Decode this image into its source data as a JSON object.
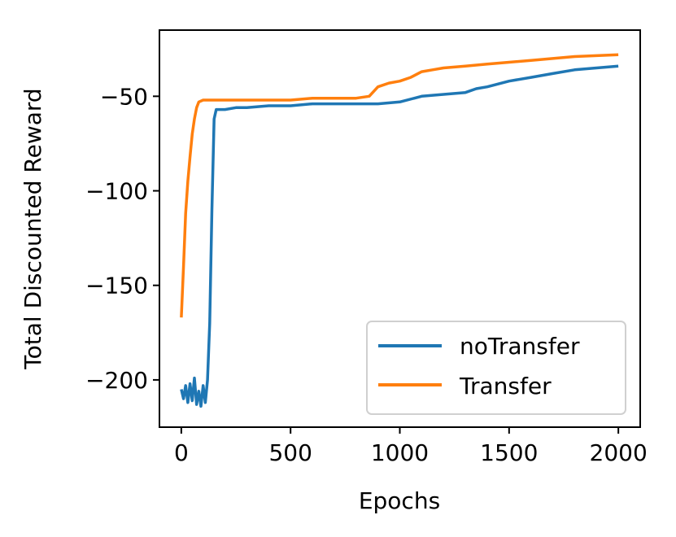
{
  "chart_data": {
    "type": "line",
    "title": "",
    "xlabel": "Epochs",
    "ylabel": "Total Discounted Reward",
    "xlim": [
      -100,
      2100
    ],
    "ylim": [
      -225,
      -15
    ],
    "xticks": [
      0,
      500,
      1000,
      1500,
      2000
    ],
    "xtick_labels": [
      "0",
      "500",
      "1000",
      "1500",
      "2000"
    ],
    "yticks": [
      -50,
      -100,
      -150,
      -200
    ],
    "ytick_labels": [
      "−50",
      "−100",
      "−150",
      "−200"
    ],
    "grid": false,
    "legend_position": "lower-right",
    "series": [
      {
        "name": "noTransfer",
        "color": "#1f77b4",
        "points": [
          [
            0,
            -205
          ],
          [
            10,
            -210
          ],
          [
            20,
            -203
          ],
          [
            30,
            -212
          ],
          [
            40,
            -202
          ],
          [
            50,
            -211
          ],
          [
            60,
            -199
          ],
          [
            70,
            -213
          ],
          [
            80,
            -206
          ],
          [
            90,
            -214
          ],
          [
            100,
            -203
          ],
          [
            110,
            -212
          ],
          [
            120,
            -200
          ],
          [
            130,
            -170
          ],
          [
            140,
            -110
          ],
          [
            150,
            -62
          ],
          [
            160,
            -57
          ],
          [
            200,
            -57
          ],
          [
            250,
            -56
          ],
          [
            300,
            -56
          ],
          [
            400,
            -55
          ],
          [
            500,
            -55
          ],
          [
            600,
            -54
          ],
          [
            700,
            -54
          ],
          [
            800,
            -54
          ],
          [
            900,
            -54
          ],
          [
            1000,
            -53
          ],
          [
            1100,
            -50
          ],
          [
            1200,
            -49
          ],
          [
            1300,
            -48
          ],
          [
            1350,
            -46
          ],
          [
            1400,
            -45
          ],
          [
            1500,
            -42
          ],
          [
            1600,
            -40
          ],
          [
            1700,
            -38
          ],
          [
            1800,
            -36
          ],
          [
            1900,
            -35
          ],
          [
            2000,
            -34
          ]
        ]
      },
      {
        "name": "Transfer",
        "color": "#ff7f0e",
        "points": [
          [
            0,
            -167
          ],
          [
            10,
            -140
          ],
          [
            20,
            -112
          ],
          [
            30,
            -95
          ],
          [
            40,
            -82
          ],
          [
            50,
            -70
          ],
          [
            60,
            -62
          ],
          [
            70,
            -56
          ],
          [
            80,
            -53
          ],
          [
            100,
            -52
          ],
          [
            150,
            -52
          ],
          [
            200,
            -52
          ],
          [
            300,
            -52
          ],
          [
            400,
            -52
          ],
          [
            500,
            -52
          ],
          [
            600,
            -51
          ],
          [
            700,
            -51
          ],
          [
            800,
            -51
          ],
          [
            860,
            -50
          ],
          [
            900,
            -45
          ],
          [
            950,
            -43
          ],
          [
            1000,
            -42
          ],
          [
            1050,
            -40
          ],
          [
            1100,
            -37
          ],
          [
            1150,
            -36
          ],
          [
            1200,
            -35
          ],
          [
            1300,
            -34
          ],
          [
            1400,
            -33
          ],
          [
            1500,
            -32
          ],
          [
            1600,
            -31
          ],
          [
            1700,
            -30
          ],
          [
            1800,
            -29
          ],
          [
            1900,
            -28.5
          ],
          [
            2000,
            -28
          ]
        ]
      }
    ]
  }
}
